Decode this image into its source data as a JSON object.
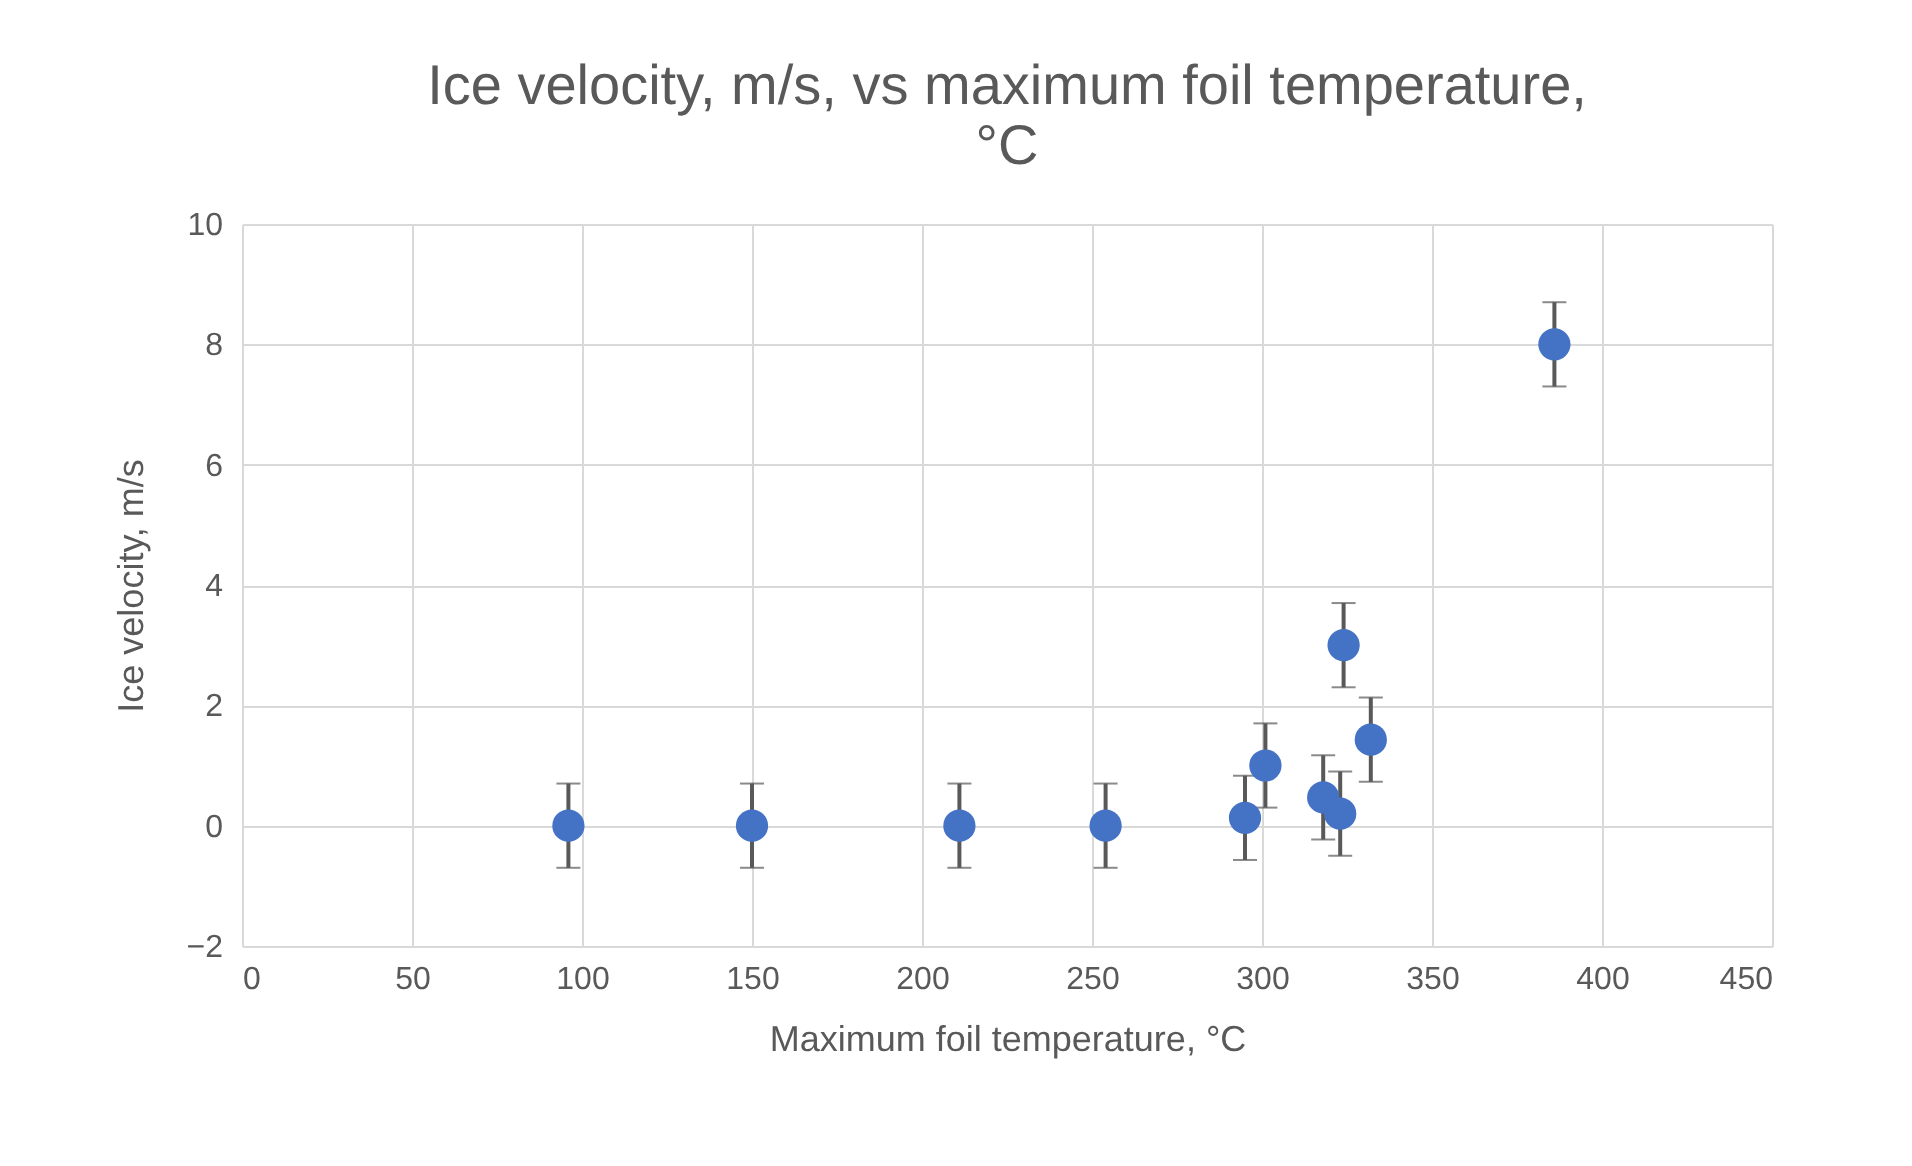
{
  "chart_data": {
    "type": "scatter",
    "title": "Ice velocity, m/s, vs maximum foil temperature, °C",
    "xlabel": "Maximum foil temperature, °C",
    "ylabel": "Ice velocity, m/s",
    "x": [
      96,
      150,
      211,
      254,
      295,
      301,
      318,
      323,
      324,
      332,
      386
    ],
    "series": [
      {
        "color": "#4472c4",
        "values": [
          0,
          0,
          0,
          0,
          0.13,
          1.0,
          0.47,
          0.2,
          3.0,
          1.43,
          8.0
        ],
        "errors": [
          0.7,
          0.7,
          0.7,
          0.7,
          0.7,
          0.7,
          0.7,
          0.7,
          0.7,
          0.7,
          0.7
        ]
      }
    ],
    "xlim": [
      0,
      450
    ],
    "xticks": [
      0,
      50,
      100,
      150,
      200,
      250,
      300,
      350,
      400,
      450
    ],
    "ylim": [
      -2,
      10
    ],
    "yticks": [
      -2,
      0,
      2,
      4,
      6,
      8,
      10
    ],
    "grid": true,
    "marker": "circle",
    "legend": false
  }
}
